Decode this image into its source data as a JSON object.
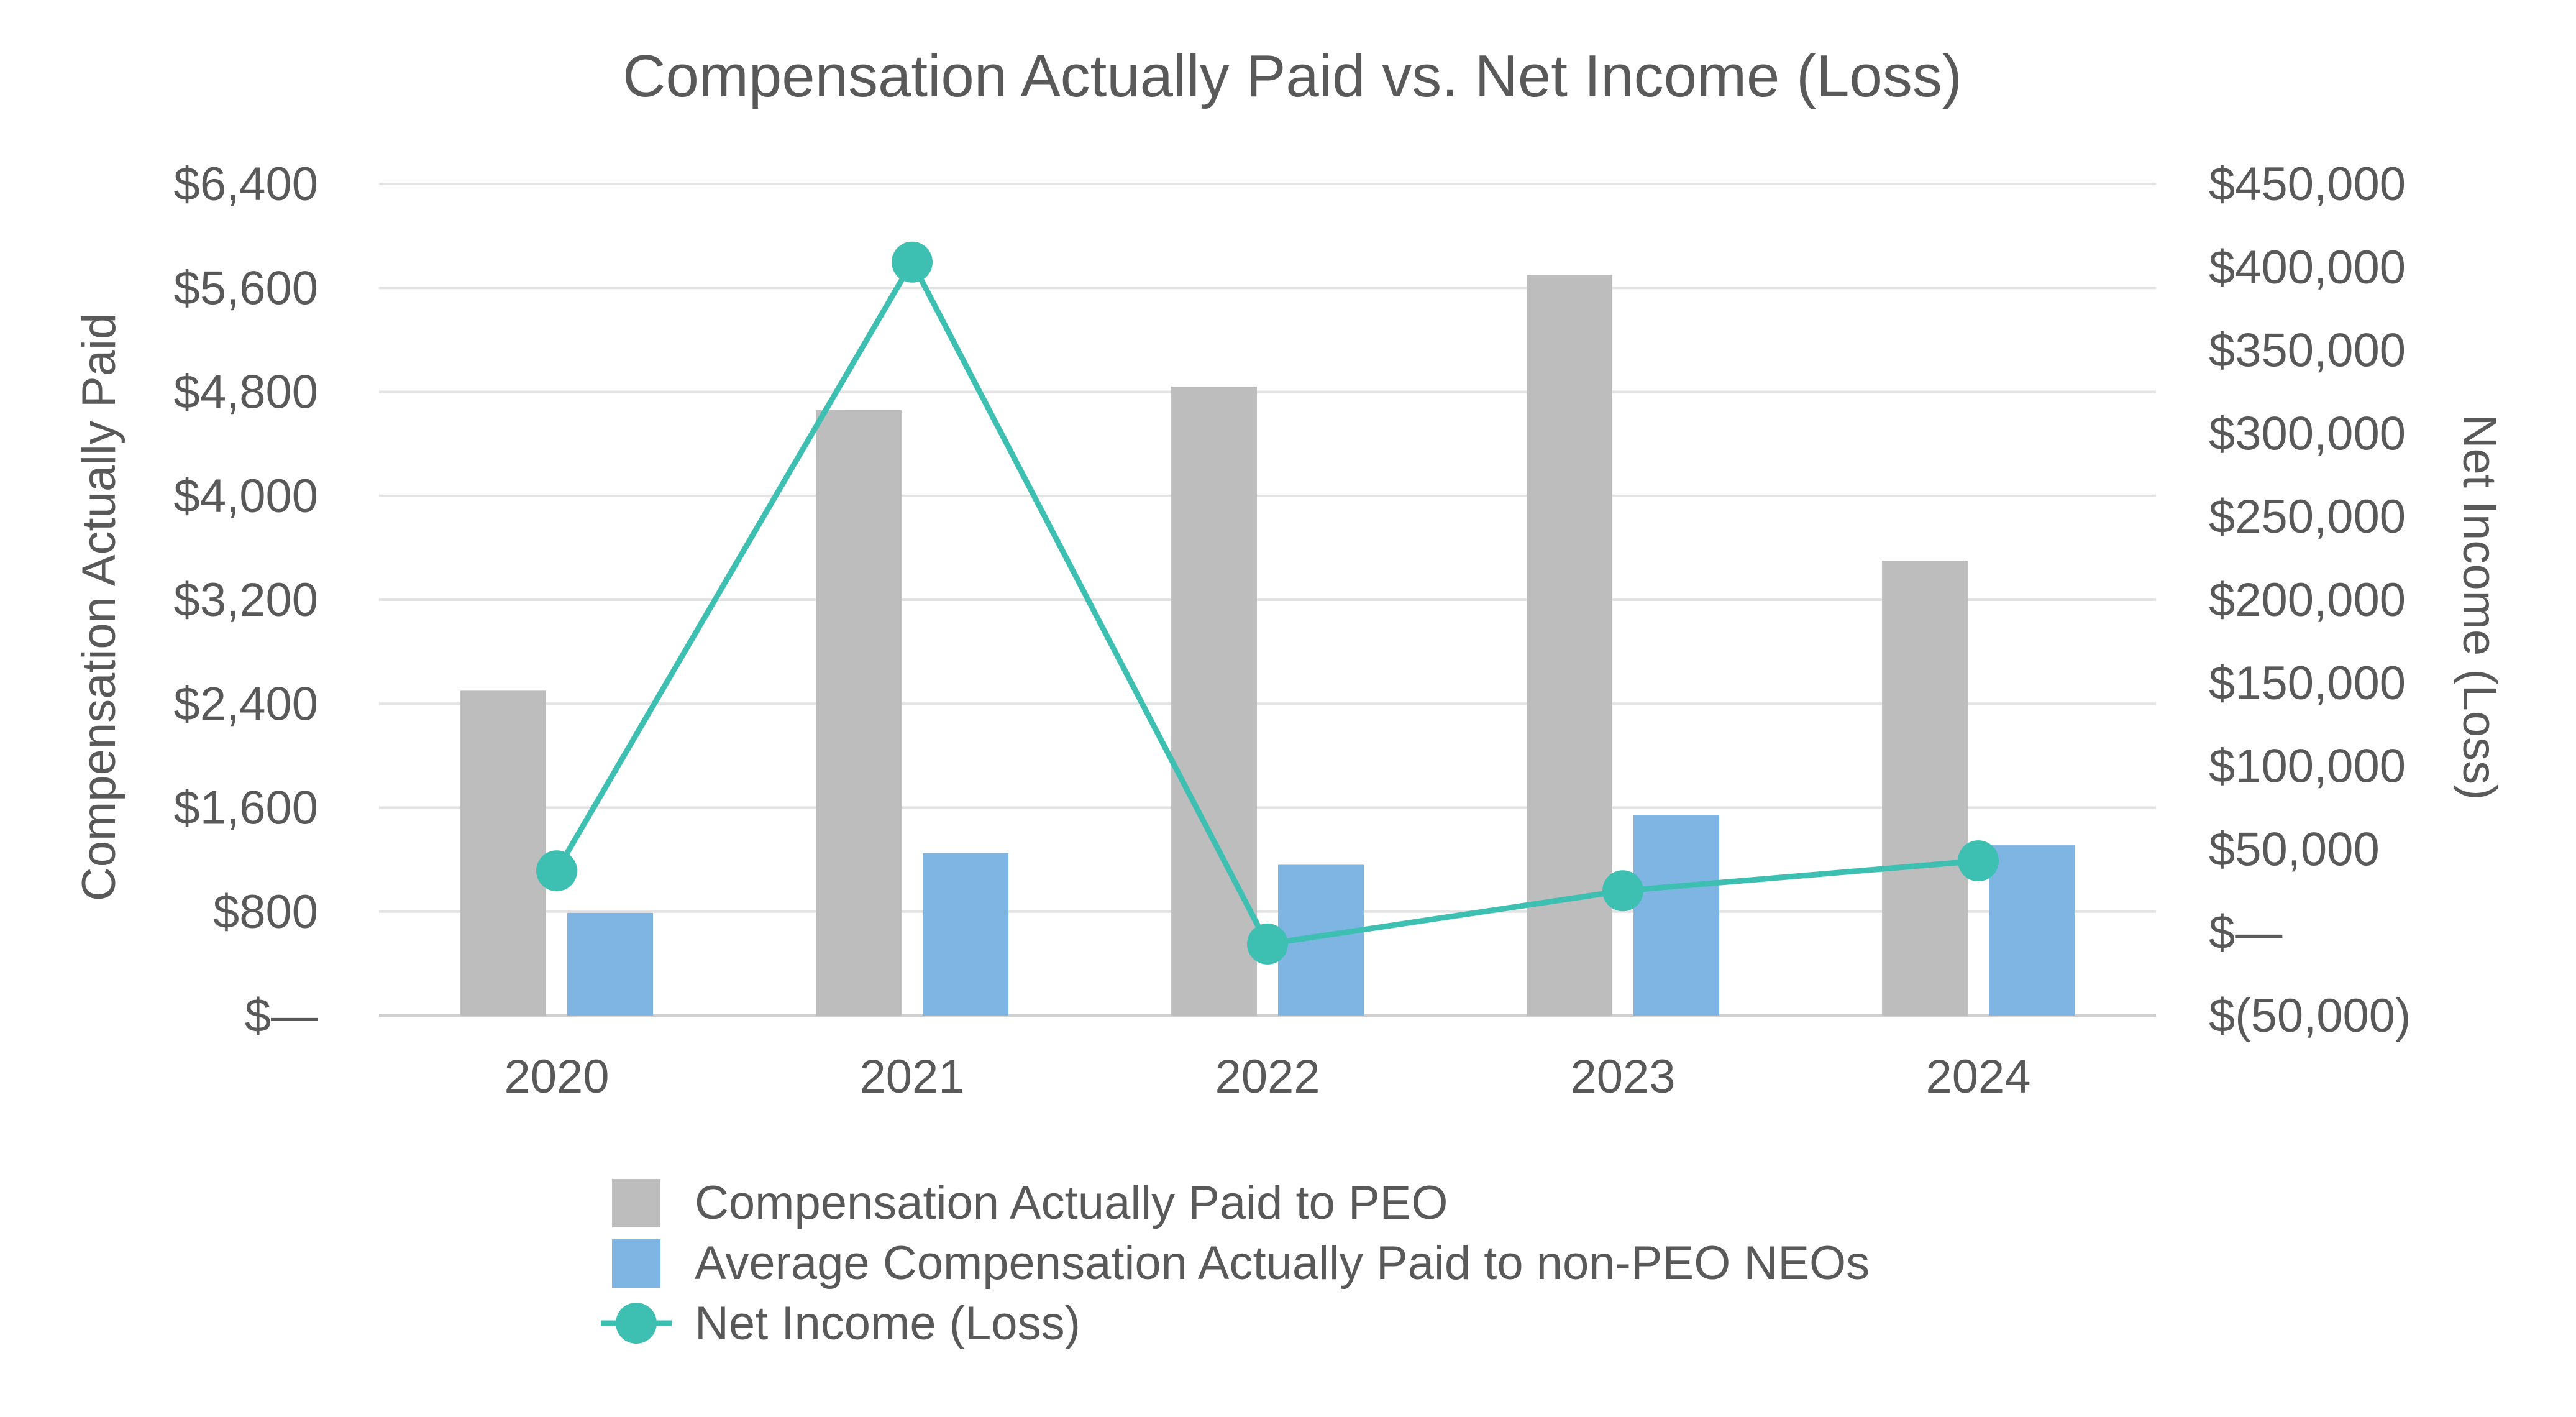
{
  "chart_data": {
    "type": "bar",
    "title": "Compensation Actually Paid vs. Net Income (Loss)",
    "categories": [
      "2020",
      "2021",
      "2022",
      "2023",
      "2024"
    ],
    "ylabel": "Compensation Actually Paid",
    "y2label": "Net Income (Loss)",
    "ylim": [
      0,
      6400
    ],
    "y2lim": [
      -50000,
      450000
    ],
    "yticks": [
      0,
      800,
      1600,
      2400,
      3200,
      4000,
      4800,
      5600,
      6400
    ],
    "ytick_labels": [
      "$—",
      "$800",
      "$1,600",
      "$2,400",
      "$3,200",
      "$4,000",
      "$4,800",
      "$5,600",
      "$6,400"
    ],
    "y2ticks": [
      -50000,
      0,
      50000,
      100000,
      150000,
      200000,
      250000,
      300000,
      350000,
      400000,
      450000
    ],
    "y2tick_labels": [
      "$(50,000)",
      "$—",
      "$50,000",
      "$100,000",
      "$150,000",
      "$200,000",
      "$250,000",
      "$300,000",
      "$350,000",
      "$400,000",
      "$450,000"
    ],
    "grid": true,
    "legend_position": "bottom",
    "series": [
      {
        "name": "Compensation Actually Paid to PEO",
        "kind": "bar",
        "axis": "left",
        "color": "#bcbdbc",
        "values": [
          2500,
          4660,
          4840,
          5700,
          3500
        ]
      },
      {
        "name": "Average Compensation Actually Paid to non-PEO NEOs",
        "kind": "bar",
        "axis": "left",
        "color": "#7eb5e2",
        "values": [
          790,
          1250,
          1160,
          1540,
          1310
        ]
      },
      {
        "name": "Net Income (Loss)",
        "kind": "line",
        "axis": "right",
        "color": "#3dbfb1",
        "values": [
          37000,
          403000,
          -7000,
          25000,
          43000
        ]
      }
    ]
  }
}
